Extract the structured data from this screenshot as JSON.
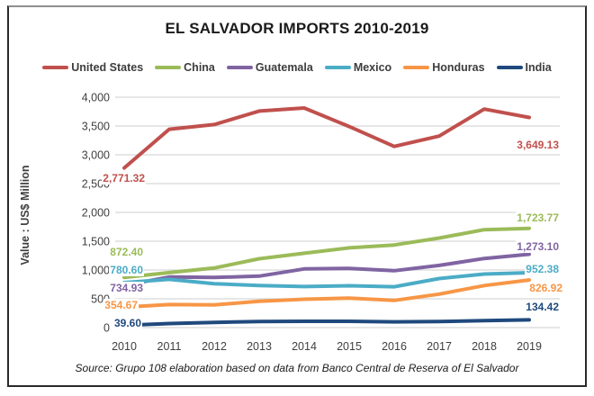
{
  "chart_data": {
    "type": "line",
    "title": "EL SALVADOR IMPORTS 2010-2019",
    "ylabel": "Value : US$ Million",
    "source": "Source: Grupo 108 elaboration based on data from Banco Central de Reserva of El Salvador",
    "categories": [
      "2010",
      "2011",
      "2012",
      "2013",
      "2014",
      "2015",
      "2016",
      "2017",
      "2018",
      "2019"
    ],
    "ylim": [
      0,
      4000
    ],
    "ytick_step": 500,
    "yticks": [
      "0",
      "500",
      "1,000",
      "1,500",
      "2,000",
      "2,500",
      "3,000",
      "3,500",
      "4,000"
    ],
    "grid": true,
    "legend_position": "top",
    "gridline_color": "#d6d6d6",
    "axis_text_color": "#3f3f3f",
    "series": [
      {
        "name": "United States",
        "color": "#C0504D",
        "values": [
          2771.32,
          3443,
          3525,
          3760,
          3812,
          3490,
          3145,
          3325,
          3793,
          3649.13
        ],
        "label_start": "2,771.32",
        "label_end": "3,649.13"
      },
      {
        "name": "China",
        "color": "#9BBB59",
        "values": [
          872.4,
          955,
          1035,
          1195,
          1290,
          1385,
          1435,
          1555,
          1700,
          1723.77
        ],
        "label_start": "872.40",
        "label_end": "1,723.77"
      },
      {
        "name": "Guatemala",
        "color": "#8064A2",
        "values": [
          734.93,
          878,
          870,
          893,
          1018,
          1028,
          988,
          1080,
          1200,
          1273.1
        ],
        "label_start": "734.93",
        "label_end": "1,273.10"
      },
      {
        "name": "Mexico",
        "color": "#4BACC6",
        "values": [
          780.6,
          838,
          762,
          732,
          712,
          726,
          710,
          852,
          930,
          952.38
        ],
        "label_start": "780.60",
        "label_end": "952.38"
      },
      {
        "name": "Honduras",
        "color": "#F79646",
        "values": [
          354.67,
          400,
          396,
          456,
          492,
          512,
          472,
          582,
          730,
          826.92
        ],
        "label_start": "354.67",
        "label_end": "826.92"
      },
      {
        "name": "India",
        "color": "#1F497D",
        "values": [
          39.6,
          70,
          90,
          104,
          110,
          110,
          100,
          106,
          120,
          134.42
        ],
        "label_start": "39.60",
        "label_end": "134.42"
      }
    ]
  }
}
